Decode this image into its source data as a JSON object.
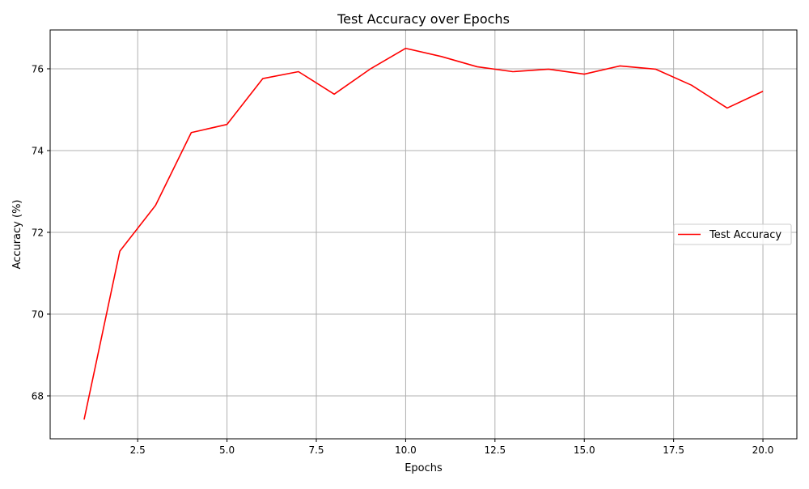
{
  "chart_data": {
    "type": "line",
    "title": "Test Accuracy over Epochs",
    "xlabel": "Epochs",
    "ylabel": "Accuracy (%)",
    "xlim": [
      0.05,
      20.95
    ],
    "ylim": [
      66.95,
      76.95
    ],
    "xticks": [
      2.5,
      5.0,
      7.5,
      10.0,
      12.5,
      15.0,
      17.5,
      20.0
    ],
    "xtick_labels": [
      "2.5",
      "5.0",
      "7.5",
      "10.0",
      "12.5",
      "15.0",
      "17.5",
      "20.0"
    ],
    "yticks": [
      68,
      70,
      72,
      74,
      76
    ],
    "ytick_labels": [
      "68",
      "70",
      "72",
      "74",
      "76"
    ],
    "grid": true,
    "legend_position": "center-right",
    "series": [
      {
        "name": "Test Accuracy",
        "color": "#ff0000",
        "x": [
          1,
          2,
          3,
          4,
          5,
          6,
          7,
          8,
          9,
          10,
          11,
          12,
          13,
          14,
          15,
          16,
          17,
          18,
          19,
          20
        ],
        "values": [
          67.42,
          71.54,
          72.66,
          74.44,
          74.64,
          75.76,
          75.93,
          75.38,
          75.99,
          76.5,
          76.3,
          76.05,
          75.93,
          75.99,
          75.87,
          76.07,
          75.99,
          75.6,
          75.04,
          75.45
        ]
      }
    ]
  }
}
